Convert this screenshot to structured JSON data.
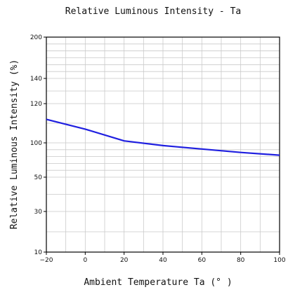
{
  "chart_data": {
    "type": "line",
    "title": "Relative Luminous Intensity - Ta",
    "xlabel": "Ambient Temperature Ta (° )",
    "ylabel": "Relative Luminous Intensity (%)",
    "xlim": [
      -20,
      100
    ],
    "x_ticks": [
      -20,
      0,
      20,
      40,
      60,
      80,
      100
    ],
    "x_tick_labels": [
      "−20",
      "0",
      "20",
      "40",
      "60",
      "80",
      "100"
    ],
    "y_ticks": [
      10,
      30,
      50,
      100,
      120,
      140,
      200
    ],
    "y_tick_labels": [
      "10",
      "30",
      "50",
      "100",
      "120",
      "140",
      "200"
    ],
    "grid": true,
    "series": [
      {
        "color": "#1f1fe0",
        "x": [
          -20,
          0,
          20,
          40,
          60,
          80,
          100
        ],
        "y": [
          112,
          107,
          101,
          96,
          91,
          86,
          82
        ]
      }
    ]
  }
}
